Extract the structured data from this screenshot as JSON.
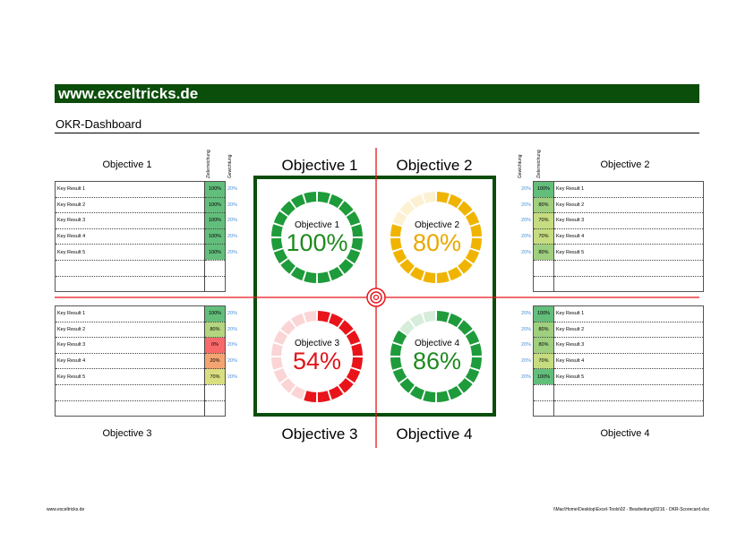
{
  "header": {
    "banner": "www.exceltricks.de",
    "title": "OKR-Dashboard"
  },
  "column_labels": {
    "achievement": "Zielerreichung",
    "weight": "Gewichtung"
  },
  "objectives": [
    {
      "name": "Objective 1",
      "percent_text": "100%",
      "percent": 100,
      "color": "#1e9b3a",
      "pct_color": "#1e8a1e",
      "key_results": [
        {
          "label": "Key Result 1",
          "achievement": "100%",
          "weight": "20%",
          "bg": "#63be7b"
        },
        {
          "label": "Key Result 2",
          "achievement": "100%",
          "weight": "20%",
          "bg": "#63be7b"
        },
        {
          "label": "Key Result 3",
          "achievement": "100%",
          "weight": "20%",
          "bg": "#63be7b"
        },
        {
          "label": "Key Result 4",
          "achievement": "100%",
          "weight": "20%",
          "bg": "#63be7b"
        },
        {
          "label": "Key Result 5",
          "achievement": "100%",
          "weight": "20%",
          "bg": "#63be7b"
        }
      ]
    },
    {
      "name": "Objective 2",
      "percent_text": "80%",
      "percent": 80,
      "color": "#f0b400",
      "pct_color": "#e9a800",
      "key_results": [
        {
          "label": "Key Result 1",
          "achievement": "100%",
          "weight": "20%",
          "bg": "#63be7b"
        },
        {
          "label": "Key Result 2",
          "achievement": "80%",
          "weight": "20%",
          "bg": "#9fcf7f"
        },
        {
          "label": "Key Result 3",
          "achievement": "70%",
          "weight": "20%",
          "bg": "#c6dc80"
        },
        {
          "label": "Key Result 4",
          "achievement": "70%",
          "weight": "20%",
          "bg": "#c6dc80"
        },
        {
          "label": "Key Result 5",
          "achievement": "80%",
          "weight": "20%",
          "bg": "#9fcf7f"
        }
      ]
    },
    {
      "name": "Objective 3",
      "percent_text": "54%",
      "percent": 54,
      "color": "#e8141a",
      "pct_color": "#e0141a",
      "key_results": [
        {
          "label": "Key Result 1",
          "achievement": "100%",
          "weight": "20%",
          "bg": "#63be7b"
        },
        {
          "label": "Key Result 2",
          "achievement": "80%",
          "weight": "20%",
          "bg": "#b3d57f"
        },
        {
          "label": "Key Result 3",
          "achievement": "0%",
          "weight": "20%",
          "bg": "#f8696b"
        },
        {
          "label": "Key Result 4",
          "achievement": "20%",
          "weight": "20%",
          "bg": "#f4a472"
        },
        {
          "label": "Key Result 5",
          "achievement": "70%",
          "weight": "20%",
          "bg": "#d9df81"
        }
      ]
    },
    {
      "name": "Objective 4",
      "percent_text": "86%",
      "percent": 86,
      "color": "#1e9b3a",
      "pct_color": "#1e8a1e",
      "key_results": [
        {
          "label": "Key Result 1",
          "achievement": "100%",
          "weight": "20%",
          "bg": "#63be7b"
        },
        {
          "label": "Key Result 2",
          "achievement": "80%",
          "weight": "20%",
          "bg": "#9fcf7f"
        },
        {
          "label": "Key Result 3",
          "achievement": "80%",
          "weight": "20%",
          "bg": "#9fcf7f"
        },
        {
          "label": "Key Result 4",
          "achievement": "70%",
          "weight": "20%",
          "bg": "#c6dc80"
        },
        {
          "label": "Key Result 5",
          "achievement": "100%",
          "weight": "20%",
          "bg": "#63be7b"
        }
      ]
    }
  ],
  "crosshair_color": "#e8141a",
  "footer": {
    "left": "www.exceltricks.de",
    "right": "\\\\Mac\\Home\\Desktop\\Excel-Tools\\02 - Bearbeitung\\0216 - OKR-Scorecard.xlsx"
  }
}
